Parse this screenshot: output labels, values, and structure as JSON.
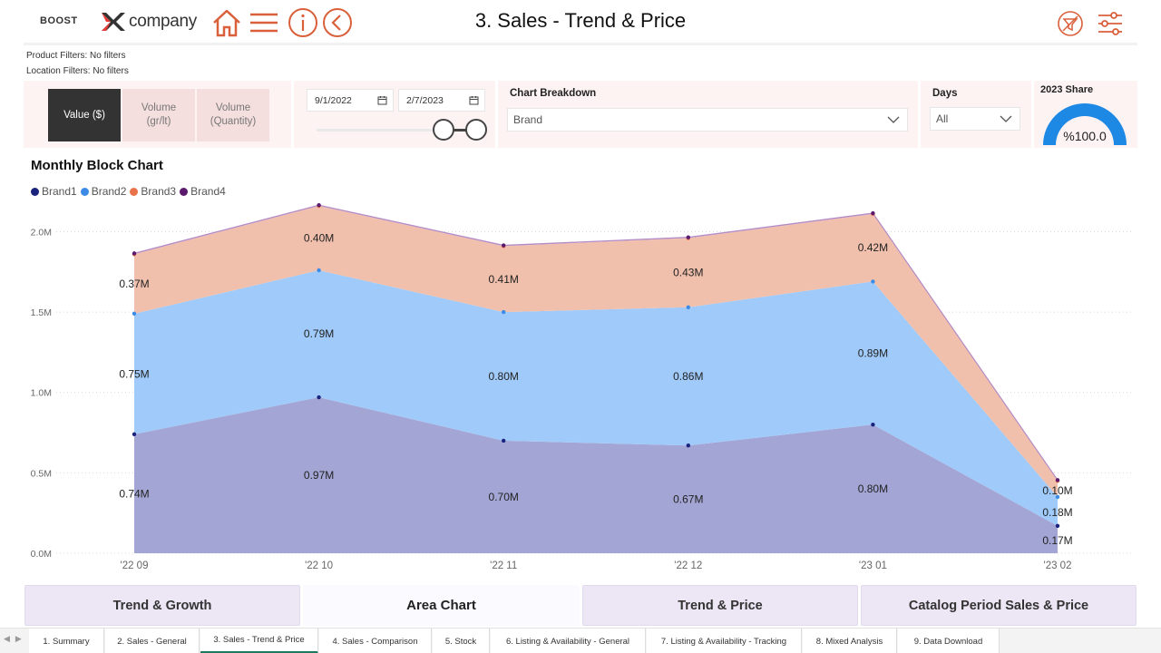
{
  "header": {
    "brand_left": "BOOST",
    "brand_company": "company",
    "title": "3. Sales - Trend & Price",
    "icons": [
      "home-icon",
      "menu-icon",
      "info-icon",
      "back-icon",
      "filter-clear-icon",
      "settings-sliders-icon"
    ]
  },
  "filters": {
    "product": "Product Filters: No filters",
    "location": "Location Filters: No filters"
  },
  "measure_toggle": {
    "options": [
      "Value ($)",
      "Volume\n(gr/lt)",
      "Volume\n(Quantity)"
    ],
    "selected": "Value ($)"
  },
  "date_range": {
    "start": "9/1/2022",
    "end": "2/7/2023"
  },
  "breakdown": {
    "label": "Chart Breakdown",
    "value": "Brand"
  },
  "days": {
    "label": "Days",
    "value": "All"
  },
  "share": {
    "label": "2023 Share",
    "value": "%100.0",
    "fraction": 1.0
  },
  "colors": {
    "accent": "#d9603b",
    "band": "#fdf3f3",
    "brand1": "#1a237e",
    "brand2": "#3c8ce7",
    "brand3": "#e8734a",
    "brand4": "#5c1a6e",
    "gauge": "#1e88e5"
  },
  "chart_data": {
    "type": "area",
    "stacked": true,
    "title": "Monthly Block Chart",
    "categories": [
      "'22 09",
      "'22 10",
      "'22 11",
      "'22 12",
      "'23 01",
      "'23 02"
    ],
    "series": [
      {
        "name": "Brand1",
        "values": [
          0.74,
          0.97,
          0.7,
          0.67,
          0.8,
          0.17
        ],
        "labels": [
          "0.74M",
          "0.97M",
          "0.70M",
          "0.67M",
          "0.80M",
          "0.17M"
        ]
      },
      {
        "name": "Brand2",
        "values": [
          0.75,
          0.79,
          0.8,
          0.86,
          0.89,
          0.18
        ],
        "labels": [
          "0.75M",
          "0.79M",
          "0.80M",
          "0.86M",
          "0.89M",
          "0.18M"
        ]
      },
      {
        "name": "Brand3",
        "values": [
          0.37,
          0.4,
          0.41,
          0.43,
          0.42,
          0.1
        ],
        "labels": [
          "0.37M",
          "0.40M",
          "0.41M",
          "0.43M",
          "0.42M",
          "0.10M"
        ]
      },
      {
        "name": "Brand4",
        "values": [
          0.005,
          0.005,
          0.005,
          0.005,
          0.005,
          0.005
        ],
        "labels": []
      }
    ],
    "y_ticks": [
      "0.0M",
      "0.5M",
      "1.0M",
      "1.5M",
      "2.0M"
    ],
    "y_tick_values": [
      0,
      0.5,
      1.0,
      1.5,
      2.0
    ],
    "ylim": [
      0,
      2.2
    ],
    "legend_position": "top-left",
    "grid": "horizontal dotted"
  },
  "view_tabs": [
    {
      "label": "Trend & Growth",
      "active": false
    },
    {
      "label": "Area Chart",
      "active": true
    },
    {
      "label": "Trend & Price",
      "active": false
    },
    {
      "label": "Catalog Period Sales & Price",
      "active": false
    }
  ],
  "pages": [
    {
      "label": "1. Summary",
      "active": false
    },
    {
      "label": "2. Sales - General",
      "active": false
    },
    {
      "label": "3. Sales - Trend & Price",
      "active": true
    },
    {
      "label": "4. Sales - Comparison",
      "active": false
    },
    {
      "label": "5. Stock",
      "active": false
    },
    {
      "label": "6. Listing & Availability - General",
      "active": false
    },
    {
      "label": "7. Listing & Availability - Tracking",
      "active": false
    },
    {
      "label": "8. Mixed Analysis",
      "active": false
    },
    {
      "label": "9. Data Download",
      "active": false
    }
  ]
}
